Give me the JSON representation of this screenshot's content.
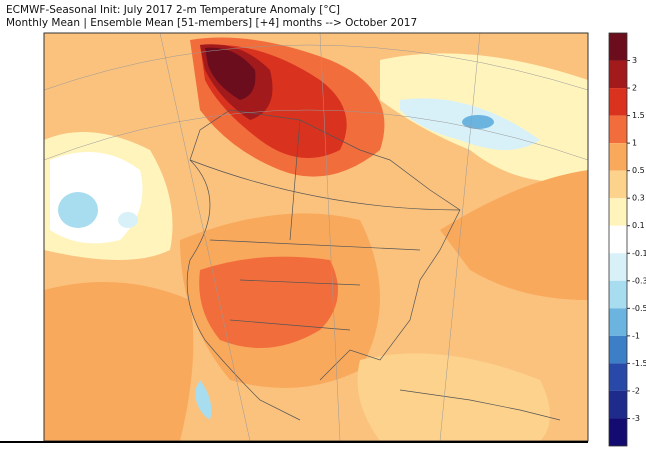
{
  "header": {
    "title_lines": [
      "ECMWF-Seasonal Init: July 2017 2-m Temperature Anomaly [°C]",
      "Monthly Mean | Ensemble Mean [51-members] [+4] months --> October 2017"
    ]
  },
  "colorbar": {
    "labels": [
      "3",
      "2",
      "1.5",
      "1",
      "0.5",
      "0.3",
      "0.1",
      "-0.1",
      "-0.3",
      "-0.5",
      "-1",
      "-1.5",
      "-2",
      "-3"
    ],
    "colors": [
      "#6b0d1c",
      "#a31a1c",
      "#d9321f",
      "#f26d3c",
      "#f9a95c",
      "#fdd28c",
      "#fff4bc",
      "#ffffff",
      "#d8f1f8",
      "#a8dcef",
      "#6cb4e0",
      "#3d7fc6",
      "#2849a8",
      "#1e2b8a",
      "#140b70"
    ]
  }
}
